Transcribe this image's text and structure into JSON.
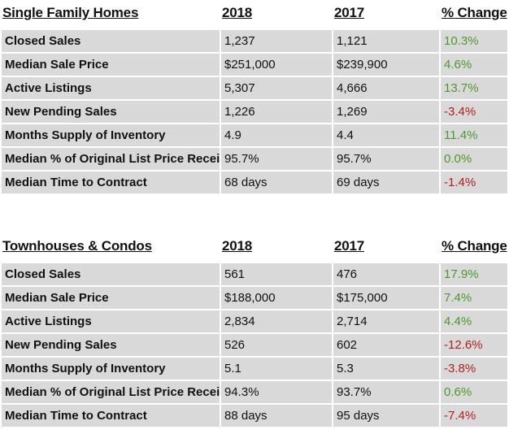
{
  "tables": [
    {
      "title": "Single Family Homes",
      "col_2018": "2018",
      "col_2017": "2017",
      "col_change": "% Change",
      "rows": [
        {
          "label": "Closed Sales",
          "v2018": "1,237",
          "v2017": "1,121",
          "change": "10.3%"
        },
        {
          "label": "Median Sale Price",
          "v2018": "$251,000",
          "v2017": "$239,900",
          "change": "4.6%"
        },
        {
          "label": "Active Listings",
          "v2018": "5,307",
          "v2017": "4,666",
          "change": "13.7%"
        },
        {
          "label": "New Pending Sales",
          "v2018": "1,226",
          "v2017": "1,269",
          "change": "-3.4%"
        },
        {
          "label": "Months Supply of Inventory",
          "v2018": "4.9",
          "v2017": "4.4",
          "change": "11.4%"
        },
        {
          "label": "Median % of Original List Price Received",
          "v2018": "95.7%",
          "v2017": "95.7%",
          "change": "0.0%"
        },
        {
          "label": "Median Time to Contract",
          "v2018": "68 days",
          "v2017": "69 days",
          "change": "-1.4%"
        }
      ]
    },
    {
      "title": "Townhouses & Condos",
      "col_2018": "2018",
      "col_2017": "2017",
      "col_change": "% Change",
      "rows": [
        {
          "label": "Closed Sales",
          "v2018": "561",
          "v2017": "476",
          "change": "17.9%"
        },
        {
          "label": "Median Sale Price",
          "v2018": "$188,000",
          "v2017": "$175,000",
          "change": "7.4%"
        },
        {
          "label": "Active Listings",
          "v2018": "2,834",
          "v2017": "2,714",
          "change": "4.4%"
        },
        {
          "label": "New Pending Sales",
          "v2018": "526",
          "v2017": "602",
          "change": "-12.6%"
        },
        {
          "label": "Months Supply of Inventory",
          "v2018": "5.1",
          "v2017": "5.3",
          "change": "-3.8%"
        },
        {
          "label": "Median % of Original List Price Received",
          "v2018": "94.3%",
          "v2017": "93.7%",
          "change": "0.6%"
        },
        {
          "label": "Median Time to Contract",
          "v2018": "88 days",
          "v2017": "95 days",
          "change": "-7.4%"
        }
      ]
    }
  ],
  "colors": {
    "positive": "#4a9a2a",
    "negative": "#b2201c",
    "row_background": "#d9d9d9"
  }
}
